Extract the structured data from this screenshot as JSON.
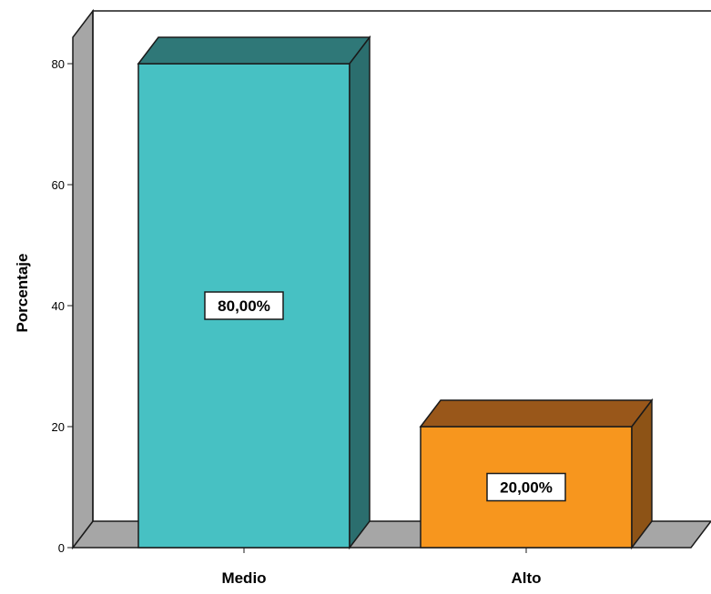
{
  "chart_data": {
    "type": "bar",
    "title": "",
    "xlabel": "",
    "ylabel": "Porcentaje",
    "categories": [
      "Medio",
      "Alto"
    ],
    "values": [
      80,
      20
    ],
    "data_labels": [
      "80,00%",
      "20,00%"
    ],
    "ylim": [
      0,
      80
    ],
    "yticks": [
      "0",
      "20",
      "40",
      "60",
      "80"
    ],
    "grid": false,
    "legend": "none",
    "three_d": true,
    "colors": {
      "bars": [
        {
          "front": "#47c1c3",
          "top": "#2f7878",
          "side": "#2b6e6e"
        },
        {
          "front": "#f7961e",
          "top": "#99571a",
          "side": "#8d5316"
        }
      ],
      "floor": "#a6a6a6",
      "wall": "#ffffff",
      "left_wall": "#a6a6a6",
      "outline": "#1a1a1a"
    }
  }
}
